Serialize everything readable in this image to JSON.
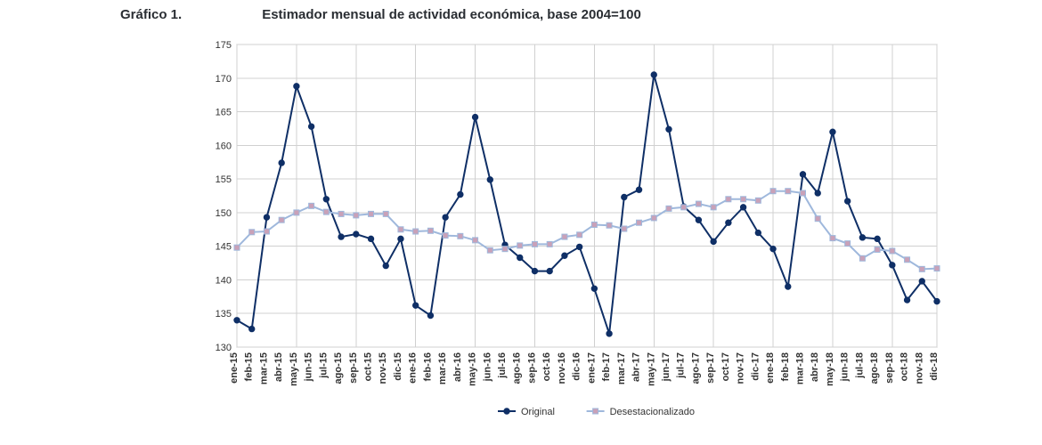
{
  "header": {
    "label": "Gráfico 1.",
    "title": "Estimador mensual de actividad económica, base 2004=100"
  },
  "chart": {
    "type": "line",
    "background_color": "#ffffff",
    "grid_color": "#d0d0d0",
    "plot_border_color": "#b8b8b8",
    "ylim": [
      130,
      175
    ],
    "ytick_step": 5,
    "ytick_labels_fontsize": 11,
    "xlabel_fontsize": 11,
    "xlabel_fontweight": "bold",
    "xlabel_rotation_deg": -90,
    "categories": [
      "ene-15",
      "feb-15",
      "mar-15",
      "abr-15",
      "may-15",
      "jun-15",
      "jul-15",
      "ago-15",
      "sep-15",
      "oct-15",
      "nov-15",
      "dic-15",
      "ene-16",
      "feb-16",
      "mar-16",
      "abr-16",
      "may-16",
      "jun-16",
      "jul-16",
      "ago-16",
      "sep-16",
      "oct-16",
      "nov-16",
      "dic-16",
      "ene-17",
      "feb-17",
      "mar-17",
      "abr-17",
      "may-17",
      "jun-17",
      "jul-17",
      "ago-17",
      "sep-17",
      "oct-17",
      "nov-17",
      "dic-17",
      "ene-18",
      "feb-18",
      "mar-18",
      "abr-18",
      "may-18",
      "jun-18",
      "jul-18",
      "ago-18",
      "sep-18",
      "oct-18",
      "nov-18",
      "dic-18"
    ],
    "series": [
      {
        "name": "Original",
        "label": "Original",
        "color": "#0f2f66",
        "line_width": 2,
        "marker_shape": "circle",
        "marker_size": 3.2,
        "marker_fill": "#0f2f66",
        "marker_stroke": "#0f2f66",
        "values": [
          134.0,
          132.7,
          149.3,
          157.4,
          168.8,
          162.8,
          152.0,
          146.4,
          146.8,
          146.1,
          142.1,
          146.1,
          136.2,
          134.7,
          149.3,
          152.7,
          164.2,
          154.9,
          145.2,
          143.3,
          141.3,
          141.3,
          143.6,
          144.9,
          138.7,
          132.0,
          152.3,
          153.4,
          170.5,
          162.4,
          150.9,
          148.9,
          145.7,
          148.5,
          150.8,
          147.0,
          144.6,
          139.0,
          155.7,
          152.9,
          162.0,
          151.7,
          146.3,
          146.1,
          142.2,
          137.0,
          139.8,
          136.8
        ]
      },
      {
        "name": "Desestacionalizado",
        "label": "Desestacionalizado",
        "color": "#9fb8dc",
        "line_width": 2,
        "marker_shape": "square",
        "marker_size": 3.0,
        "marker_fill": "#c9a1b8",
        "marker_stroke": "#9fb8dc",
        "values": [
          144.8,
          147.1,
          147.2,
          148.9,
          150.0,
          151.0,
          150.1,
          149.8,
          149.6,
          149.8,
          149.8,
          147.5,
          147.2,
          147.3,
          146.6,
          146.5,
          145.9,
          144.4,
          144.6,
          145.1,
          145.3,
          145.3,
          146.4,
          146.7,
          148.2,
          148.1,
          147.6,
          148.5,
          149.2,
          150.6,
          150.8,
          151.3,
          150.8,
          152.0,
          152.0,
          151.8,
          153.2,
          153.2,
          152.9,
          149.1,
          146.2,
          145.4,
          143.2,
          144.5,
          144.3,
          143.0,
          141.6,
          141.7
        ]
      }
    ],
    "legend": {
      "below_plot": true,
      "fontsize": 11,
      "items": [
        {
          "series": "Original",
          "marker_fill": "#0f2f66",
          "marker_stroke": "#0f2f66",
          "shape": "circle",
          "line_color": "#0f2f66"
        },
        {
          "series": "Desestacionalizado",
          "marker_fill": "#c9a1b8",
          "marker_stroke": "#9fb8dc",
          "shape": "square",
          "line_color": "#9fb8dc"
        }
      ]
    }
  }
}
